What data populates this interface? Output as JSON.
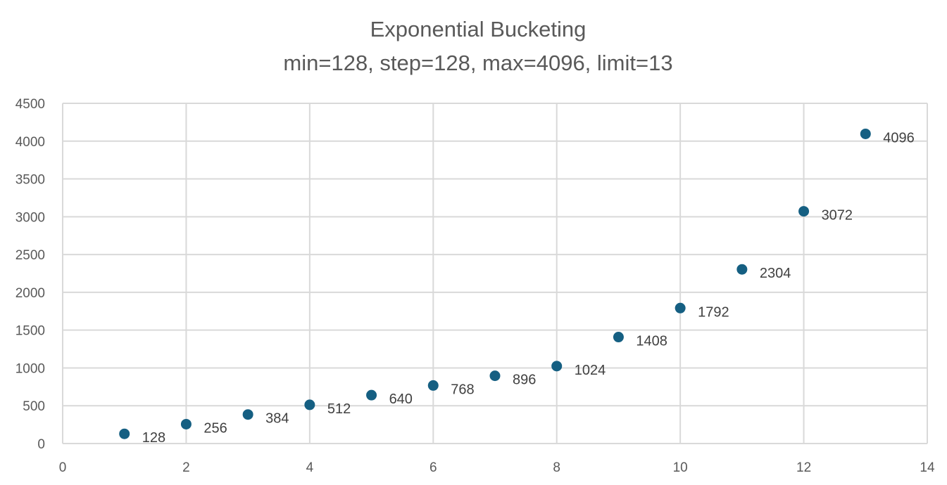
{
  "chart_data": {
    "type": "scatter",
    "title": "Exponential Bucketing",
    "subtitle": "min=128, step=128, max=4096, limit=13",
    "xlabel": "",
    "ylabel": "",
    "xlim": [
      0,
      14
    ],
    "ylim": [
      0,
      4500
    ],
    "xticks": [
      0,
      2,
      4,
      6,
      8,
      10,
      12,
      14
    ],
    "yticks": [
      0,
      500,
      1000,
      1500,
      2000,
      2500,
      3000,
      3500,
      4000,
      4500
    ],
    "grid": true,
    "legend": "none",
    "marker_color": "#155f82",
    "x": [
      1,
      2,
      3,
      4,
      5,
      6,
      7,
      8,
      9,
      10,
      11,
      12,
      13
    ],
    "y": [
      128,
      256,
      384,
      512,
      640,
      768,
      896,
      1024,
      1408,
      1792,
      2304,
      3072,
      4096
    ],
    "data_labels": [
      "128",
      "256",
      "384",
      "512",
      "640",
      "768",
      "896",
      "1024",
      "1408",
      "1792",
      "2304",
      "3072",
      "4096"
    ]
  }
}
